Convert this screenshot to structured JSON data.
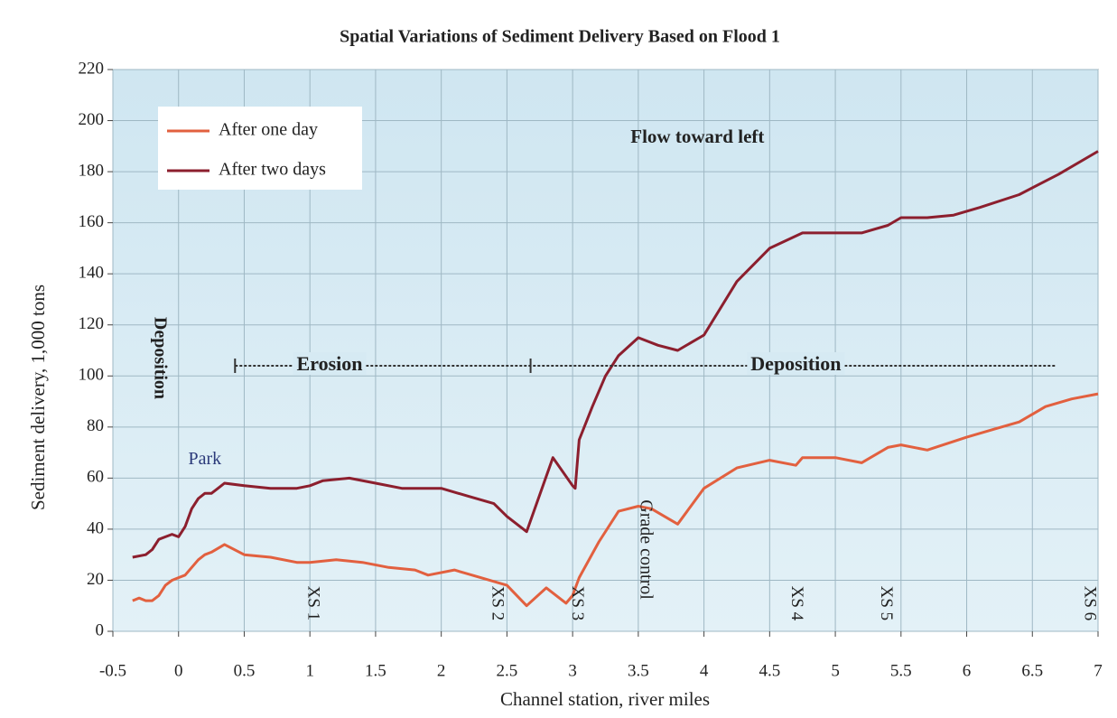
{
  "chart_data": {
    "type": "line",
    "title": "Spatial Variations of Sediment Delivery Based on Flood 1",
    "x_label": "Channel station, river miles",
    "y_label": "Sediment delivery, 1,000 tons",
    "xlim": [
      -0.5,
      7
    ],
    "ylim": [
      0,
      220
    ],
    "xticks": [
      -0.5,
      0,
      0.5,
      1,
      1.5,
      2,
      2.5,
      3,
      3.5,
      4,
      4.5,
      5,
      5.5,
      6,
      6.5,
      7
    ],
    "yticks": [
      0,
      20,
      40,
      60,
      80,
      100,
      120,
      140,
      160,
      180,
      200,
      220
    ],
    "grid": true,
    "legend": "upper left",
    "series": [
      {
        "name": "After one day",
        "color": "#e2603f",
        "x": [
          -0.35,
          -0.3,
          -0.25,
          -0.2,
          -0.15,
          -0.1,
          -0.05,
          0,
          0.05,
          0.1,
          0.15,
          0.2,
          0.25,
          0.35,
          0.5,
          0.7,
          0.9,
          1.0,
          1.2,
          1.4,
          1.6,
          1.8,
          1.9,
          2.1,
          2.3,
          2.5,
          2.65,
          2.8,
          2.95,
          3.0,
          3.05,
          3.2,
          3.35,
          3.5,
          3.6,
          3.8,
          4.0,
          4.25,
          4.5,
          4.7,
          4.75,
          5.0,
          5.2,
          5.4,
          5.5,
          5.7,
          6.0,
          6.2,
          6.4,
          6.6,
          6.8,
          7.0
        ],
        "values": [
          12,
          13,
          12,
          12,
          14,
          18,
          20,
          21,
          22,
          25,
          28,
          30,
          31,
          34,
          30,
          29,
          27,
          27,
          28,
          27,
          25,
          24,
          22,
          24,
          21,
          18,
          10,
          17,
          11,
          14,
          21,
          35,
          47,
          49,
          48,
          42,
          56,
          64,
          67,
          65,
          68,
          68,
          66,
          72,
          73,
          71,
          76,
          79,
          82,
          88,
          91,
          93
        ]
      },
      {
        "name": "After two days",
        "color": "#8c1f2e",
        "x": [
          -0.35,
          -0.25,
          -0.2,
          -0.15,
          -0.1,
          -0.05,
          0,
          0.05,
          0.1,
          0.15,
          0.2,
          0.25,
          0.3,
          0.35,
          0.5,
          0.7,
          0.9,
          1.0,
          1.1,
          1.3,
          1.5,
          1.7,
          2.0,
          2.2,
          2.4,
          2.5,
          2.6,
          2.65,
          2.85,
          3.0,
          3.02,
          3.05,
          3.15,
          3.25,
          3.35,
          3.5,
          3.65,
          3.8,
          4.0,
          4.25,
          4.5,
          4.75,
          5.0,
          5.2,
          5.4,
          5.5,
          5.7,
          5.9,
          6.1,
          6.4,
          6.7,
          7.0
        ],
        "values": [
          29,
          30,
          32,
          36,
          37,
          38,
          37,
          41,
          48,
          52,
          54,
          54,
          56,
          58,
          57,
          56,
          56,
          57,
          59,
          60,
          58,
          56,
          56,
          53,
          50,
          45,
          41,
          39,
          68,
          57,
          56,
          75,
          88,
          100,
          108,
          115,
          112,
          110,
          116,
          137,
          150,
          156,
          156,
          156,
          159,
          162,
          162,
          163,
          166,
          171,
          179,
          188
        ]
      }
    ],
    "annotations": [
      "Flow toward left",
      "Erosion",
      "Deposition",
      "Deposition",
      "Park",
      "Grade control",
      "XS 1",
      "XS 2",
      "XS 3",
      "XS 4",
      "XS 5",
      "XS 6"
    ]
  }
}
